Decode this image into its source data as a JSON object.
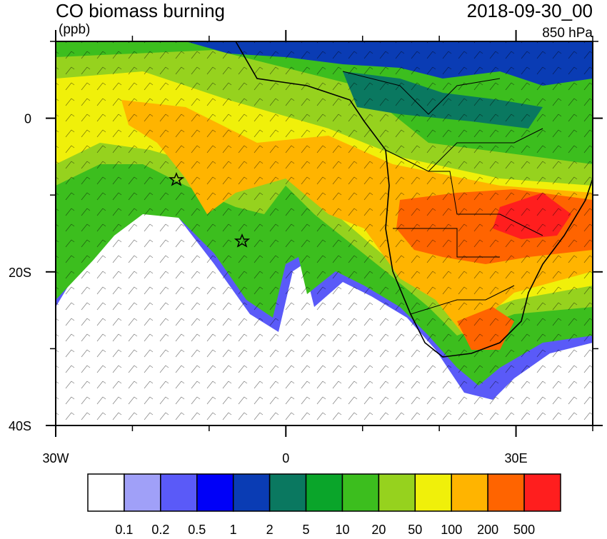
{
  "map": {
    "title": "CO biomass burning",
    "time": "2018-09-30_00",
    "units": "(ppb)",
    "level": "850 hPa",
    "xlim": [
      -30,
      40
    ],
    "ylim": [
      -40,
      10
    ],
    "xticks": [
      {
        "value": -30,
        "label": "30W"
      },
      0,
      {
        "value": 30,
        "label": "30E"
      }
    ],
    "yticks": [
      0,
      {
        "value": -20,
        "label": "20S"
      },
      {
        "value": -40,
        "label": "40S"
      }
    ],
    "minor_xticks": [
      -20,
      -10,
      10,
      20,
      40
    ],
    "minor_yticks": [
      -30,
      -10,
      10
    ],
    "colorbar": {
      "colors": [
        "#ffffff",
        "#a0a0f8",
        "#5a5af8",
        "#0000f8",
        "#0a3cb4",
        "#0a7860",
        "#0aa52a",
        "#3cbe1e",
        "#96d21e",
        "#f0f00a",
        "#ffb400",
        "#ff6400",
        "#ff1e1e"
      ],
      "labels": [
        0.1,
        0.2,
        0.5,
        1,
        2,
        5,
        10,
        20,
        50,
        100,
        200,
        500
      ]
    }
  }
}
